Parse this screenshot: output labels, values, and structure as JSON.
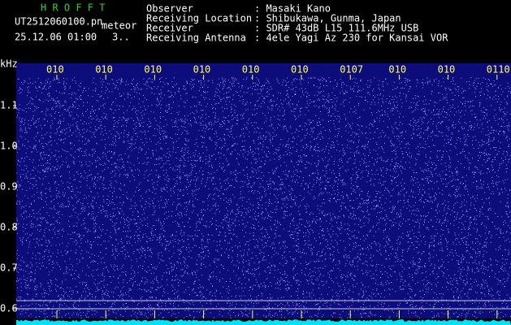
{
  "header": {
    "title": "H R O F F T",
    "file": "UT2512060100.pn",
    "mode": "meteor",
    "time": "25.12.06 01:00",
    "count": "3.."
  },
  "info": [
    {
      "label": "Observer",
      "value": ": Masaki Kano"
    },
    {
      "label": "Receiving Location",
      "value": ": Shibukawa, Gunma, Japan"
    },
    {
      "label": "Receiver",
      "value": ": SDR# 43dB L15 111.6MHz USB"
    },
    {
      "label": "Receiving Antenna",
      "value": ": 4ele Yagi Az 230 for Kansai VOR"
    }
  ],
  "axis": {
    "unit": "kHz",
    "y_labels": [
      "1.1",
      "1.0",
      "0.9",
      "0.8",
      "0.7",
      "0.6"
    ],
    "time_labels": [
      "010",
      "010",
      "010",
      "010",
      "010",
      "010",
      "0107",
      "010",
      "010",
      "0110"
    ]
  }
}
